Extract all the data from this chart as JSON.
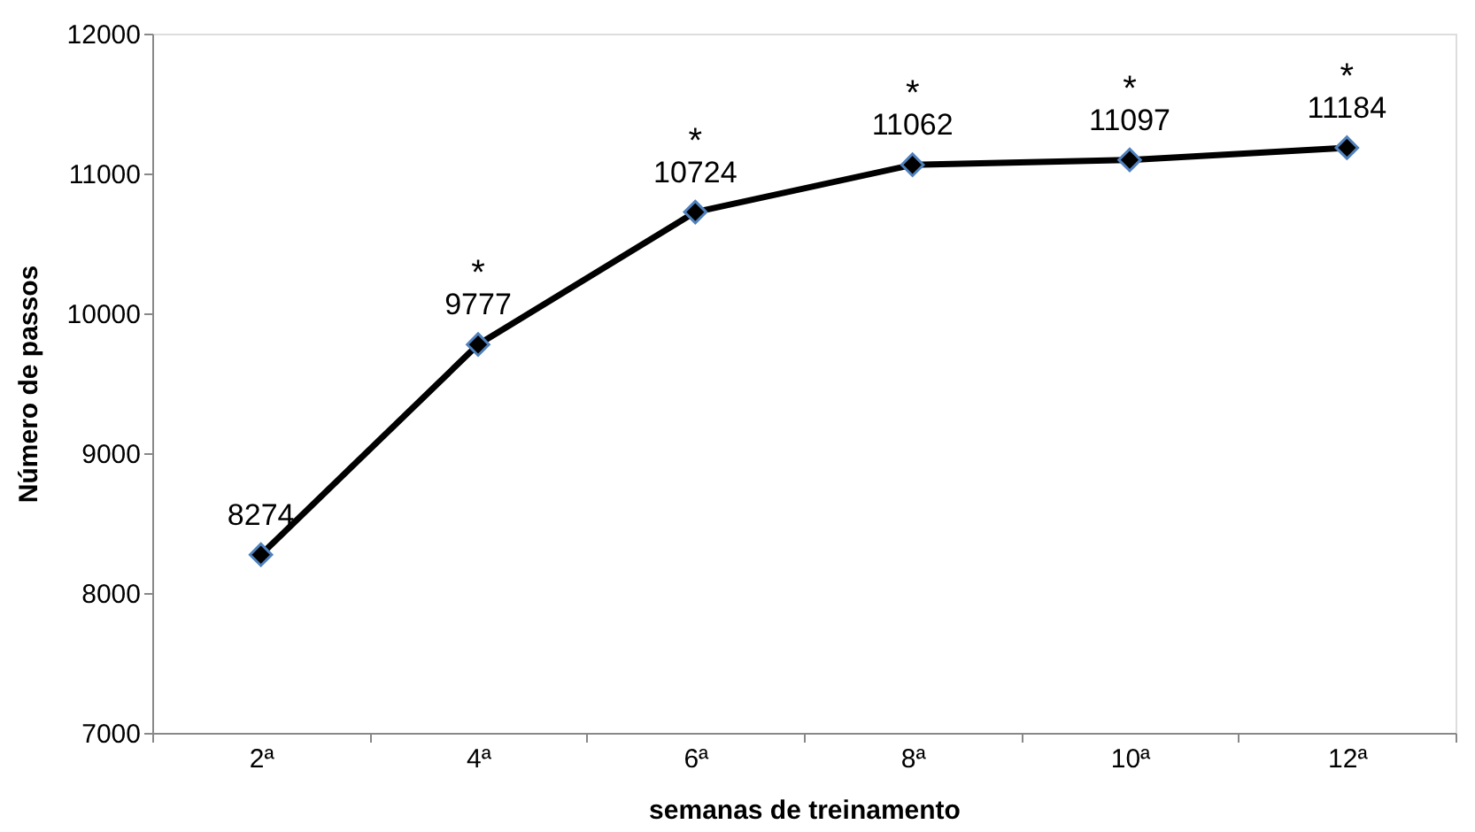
{
  "chart_data": {
    "type": "line",
    "xlabel": "semanas de treinamento",
    "ylabel": "Número de passos",
    "categories": [
      "2ª",
      "4ª",
      "6ª",
      "8ª",
      "10ª",
      "12ª"
    ],
    "series": [
      {
        "color": "#000000",
        "values": [
          8274,
          9777,
          10724,
          11062,
          11097,
          11184
        ]
      }
    ],
    "ylim": [
      7000,
      12000
    ],
    "yticks": [
      7000,
      8000,
      9000,
      10000,
      11000,
      12000
    ],
    "grid": false,
    "marker": "diamond",
    "line_style": "solid",
    "data_labels": true,
    "annotations": [
      {
        "text": "*",
        "x": "4ª",
        "y": 9777
      },
      {
        "text": "*",
        "x": "6ª",
        "y": 10724
      },
      {
        "text": "*",
        "x": "8ª",
        "y": 11062
      },
      {
        "text": "*",
        "x": "10ª",
        "y": 11097
      },
      {
        "text": "*",
        "x": "12ª",
        "y": 11184
      }
    ]
  }
}
